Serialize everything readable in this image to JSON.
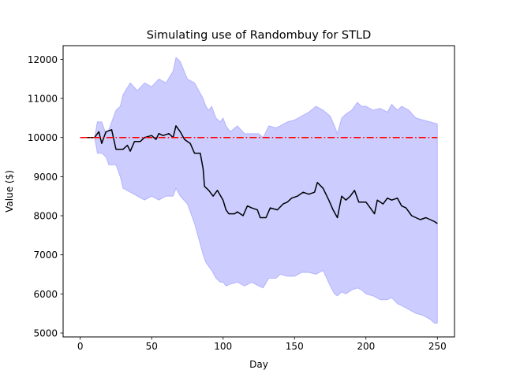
{
  "chart_data": {
    "type": "line",
    "title": "Simulating use of Randombuy for STLD",
    "xlabel": "Day",
    "ylabel": "Value ($)",
    "xlim": [
      -12,
      262
    ],
    "ylim": [
      4900,
      12350
    ],
    "x_ticks": [
      0,
      50,
      100,
      150,
      200,
      250
    ],
    "y_ticks": [
      5000,
      6000,
      7000,
      8000,
      9000,
      10000,
      11000,
      12000
    ],
    "grid": false,
    "legend": "none",
    "series": [
      {
        "role": "mean",
        "color": "#000000",
        "points": [
          [
            0,
            10000
          ],
          [
            10,
            10000
          ],
          [
            13,
            10150
          ],
          [
            15,
            9850
          ],
          [
            18,
            10150
          ],
          [
            22,
            10200
          ],
          [
            25,
            9700
          ],
          [
            30,
            9700
          ],
          [
            33,
            9800
          ],
          [
            35,
            9650
          ],
          [
            38,
            9900
          ],
          [
            42,
            9900
          ],
          [
            45,
            10000
          ],
          [
            50,
            10050
          ],
          [
            53,
            9950
          ],
          [
            55,
            10100
          ],
          [
            58,
            10050
          ],
          [
            62,
            10100
          ],
          [
            65,
            10000
          ],
          [
            67,
            10300
          ],
          [
            70,
            10150
          ],
          [
            73,
            9950
          ],
          [
            77,
            9850
          ],
          [
            80,
            9600
          ],
          [
            84,
            9600
          ],
          [
            86,
            9200
          ],
          [
            87,
            8750
          ],
          [
            90,
            8650
          ],
          [
            93,
            8500
          ],
          [
            96,
            8650
          ],
          [
            100,
            8400
          ],
          [
            102,
            8150
          ],
          [
            104,
            8050
          ],
          [
            108,
            8050
          ],
          [
            110,
            8100
          ],
          [
            114,
            8000
          ],
          [
            117,
            8250
          ],
          [
            120,
            8200
          ],
          [
            124,
            8150
          ],
          [
            126,
            7950
          ],
          [
            130,
            7950
          ],
          [
            133,
            8200
          ],
          [
            138,
            8150
          ],
          [
            142,
            8300
          ],
          [
            145,
            8350
          ],
          [
            148,
            8450
          ],
          [
            152,
            8500
          ],
          [
            156,
            8600
          ],
          [
            160,
            8550
          ],
          [
            164,
            8600
          ],
          [
            166,
            8850
          ],
          [
            170,
            8700
          ],
          [
            174,
            8400
          ],
          [
            177,
            8150
          ],
          [
            180,
            7950
          ],
          [
            183,
            8500
          ],
          [
            186,
            8400
          ],
          [
            189,
            8500
          ],
          [
            192,
            8650
          ],
          [
            195,
            8350
          ],
          [
            200,
            8350
          ],
          [
            203,
            8200
          ],
          [
            206,
            8050
          ],
          [
            208,
            8400
          ],
          [
            212,
            8300
          ],
          [
            215,
            8450
          ],
          [
            218,
            8400
          ],
          [
            222,
            8450
          ],
          [
            225,
            8250
          ],
          [
            228,
            8200
          ],
          [
            232,
            8000
          ],
          [
            235,
            7950
          ],
          [
            238,
            7900
          ],
          [
            242,
            7950
          ],
          [
            245,
            7900
          ],
          [
            248,
            7850
          ],
          [
            250,
            7800
          ]
        ]
      },
      {
        "role": "reference",
        "color": "#ff0000",
        "style": "dash-dot",
        "points": [
          [
            0,
            10000
          ],
          [
            250,
            10000
          ]
        ]
      }
    ],
    "band": {
      "color": "#0000ff",
      "opacity": 0.2,
      "upper": [
        [
          0,
          10000
        ],
        [
          10,
          10000
        ],
        [
          12,
          10400
        ],
        [
          15,
          10400
        ],
        [
          18,
          10100
        ],
        [
          20,
          10200
        ],
        [
          25,
          10700
        ],
        [
          28,
          10800
        ],
        [
          30,
          11100
        ],
        [
          35,
          11400
        ],
        [
          40,
          11200
        ],
        [
          45,
          11400
        ],
        [
          50,
          11300
        ],
        [
          55,
          11500
        ],
        [
          60,
          11400
        ],
        [
          65,
          11700
        ],
        [
          67,
          12050
        ],
        [
          70,
          11950
        ],
        [
          75,
          11500
        ],
        [
          80,
          11400
        ],
        [
          83,
          11200
        ],
        [
          86,
          11000
        ],
        [
          88,
          10800
        ],
        [
          90,
          10700
        ],
        [
          92,
          10800
        ],
        [
          95,
          10500
        ],
        [
          98,
          10400
        ],
        [
          100,
          10500
        ],
        [
          102,
          10300
        ],
        [
          105,
          10150
        ],
        [
          110,
          10300
        ],
        [
          115,
          10100
        ],
        [
          120,
          10100
        ],
        [
          125,
          10100
        ],
        [
          128,
          10000
        ],
        [
          132,
          10300
        ],
        [
          137,
          10250
        ],
        [
          140,
          10300
        ],
        [
          145,
          10400
        ],
        [
          150,
          10450
        ],
        [
          155,
          10550
        ],
        [
          160,
          10650
        ],
        [
          165,
          10800
        ],
        [
          170,
          10700
        ],
        [
          175,
          10550
        ],
        [
          178,
          10300
        ],
        [
          180,
          10100
        ],
        [
          183,
          10500
        ],
        [
          186,
          10600
        ],
        [
          190,
          10700
        ],
        [
          194,
          10900
        ],
        [
          197,
          10800
        ],
        [
          200,
          10800
        ],
        [
          205,
          10700
        ],
        [
          210,
          10750
        ],
        [
          215,
          10650
        ],
        [
          218,
          10850
        ],
        [
          222,
          10700
        ],
        [
          225,
          10800
        ],
        [
          230,
          10700
        ],
        [
          235,
          10500
        ],
        [
          240,
          10450
        ],
        [
          245,
          10400
        ],
        [
          250,
          10350
        ]
      ],
      "lower": [
        [
          0,
          10000
        ],
        [
          10,
          10000
        ],
        [
          12,
          9600
        ],
        [
          15,
          9600
        ],
        [
          18,
          9500
        ],
        [
          20,
          9300
        ],
        [
          25,
          9300
        ],
        [
          28,
          9000
        ],
        [
          30,
          8700
        ],
        [
          35,
          8600
        ],
        [
          40,
          8500
        ],
        [
          45,
          8400
        ],
        [
          50,
          8500
        ],
        [
          55,
          8400
        ],
        [
          60,
          8500
        ],
        [
          65,
          8500
        ],
        [
          67,
          8700
        ],
        [
          70,
          8500
        ],
        [
          75,
          8300
        ],
        [
          80,
          7800
        ],
        [
          83,
          7400
        ],
        [
          86,
          7000
        ],
        [
          88,
          6800
        ],
        [
          90,
          6700
        ],
        [
          92,
          6600
        ],
        [
          95,
          6400
        ],
        [
          98,
          6300
        ],
        [
          100,
          6300
        ],
        [
          102,
          6200
        ],
        [
          105,
          6250
        ],
        [
          110,
          6300
        ],
        [
          115,
          6200
        ],
        [
          120,
          6300
        ],
        [
          125,
          6200
        ],
        [
          128,
          6150
        ],
        [
          132,
          6400
        ],
        [
          137,
          6400
        ],
        [
          140,
          6500
        ],
        [
          145,
          6450
        ],
        [
          150,
          6450
        ],
        [
          155,
          6550
        ],
        [
          160,
          6550
        ],
        [
          165,
          6500
        ],
        [
          170,
          6600
        ],
        [
          175,
          6200
        ],
        [
          178,
          6000
        ],
        [
          180,
          5950
        ],
        [
          183,
          6050
        ],
        [
          186,
          6000
        ],
        [
          190,
          6100
        ],
        [
          194,
          6150
        ],
        [
          197,
          6100
        ],
        [
          200,
          6000
        ],
        [
          205,
          5950
        ],
        [
          210,
          5850
        ],
        [
          215,
          5850
        ],
        [
          218,
          5900
        ],
        [
          222,
          5750
        ],
        [
          225,
          5700
        ],
        [
          230,
          5600
        ],
        [
          235,
          5500
        ],
        [
          240,
          5450
        ],
        [
          245,
          5350
        ],
        [
          248,
          5250
        ],
        [
          250,
          5250
        ]
      ]
    }
  }
}
